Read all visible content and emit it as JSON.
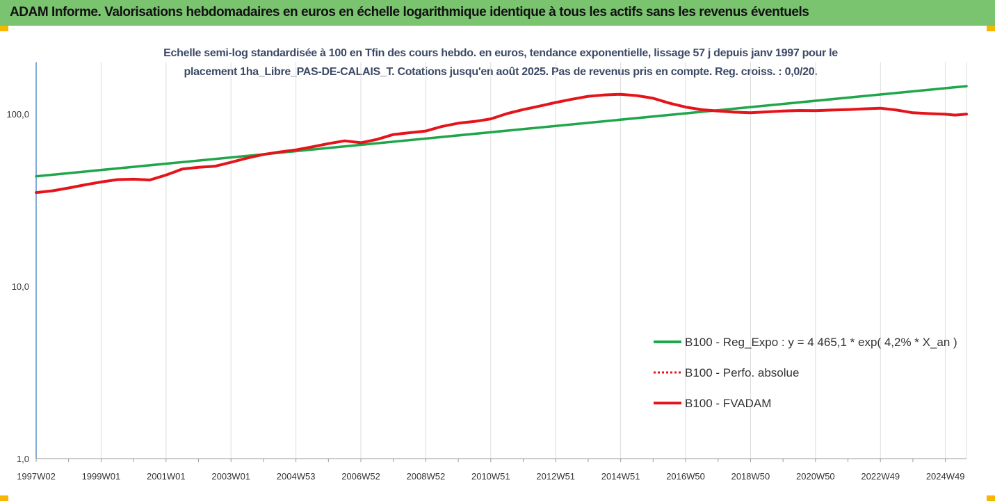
{
  "header": {
    "title": "ADAM Informe. Valorisations hebdomadaires en euros en échelle logarithmique identique à tous les actifs sans les revenus éventuels"
  },
  "colors": {
    "header_bg": "#7ac36f",
    "accent": "#f5b700",
    "trend": "#1fa64a",
    "perf": "#e5141b",
    "fvadam": "#e5141b"
  },
  "chart_data": {
    "type": "line",
    "title_lines": [
      "Echelle semi-log standardisée à 100 en Tfin des cours hebdo. en euros, tendance exponentielle, lissage 57 j depuis janv 1997 pour le",
      "placement 1ha_Libre_PAS-DE-CALAIS_T. Cotations jusqu'en août 2025. Pas de revenus pris en compte. Reg. croiss. : 0,0/20."
    ],
    "y_scale": "log",
    "ylim": [
      1,
      200
    ],
    "xlim": [
      1997.0,
      2025.65
    ],
    "y_ticks": [
      {
        "value": 1,
        "label": "1,0"
      },
      {
        "value": 10,
        "label": "10,0"
      },
      {
        "value": 100,
        "label": "100,0"
      }
    ],
    "x_ticks": [
      {
        "value": 1997.0,
        "label": "1997W02"
      },
      {
        "value": 1999.0,
        "label": "1999W01"
      },
      {
        "value": 2001.0,
        "label": "2001W01"
      },
      {
        "value": 2003.0,
        "label": "2003W01"
      },
      {
        "value": 2005.0,
        "label": "2004W53"
      },
      {
        "value": 2007.0,
        "label": "2006W52"
      },
      {
        "value": 2009.0,
        "label": "2008W52"
      },
      {
        "value": 2011.0,
        "label": "2010W51"
      },
      {
        "value": 2013.0,
        "label": "2012W51"
      },
      {
        "value": 2015.0,
        "label": "2014W51"
      },
      {
        "value": 2017.0,
        "label": "2016W50"
      },
      {
        "value": 2019.0,
        "label": "2018W50"
      },
      {
        "value": 2021.0,
        "label": "2020W50"
      },
      {
        "value": 2023.0,
        "label": "2022W49"
      },
      {
        "value": 2025.0,
        "label": "2024W49"
      }
    ],
    "grid": {
      "vertical": true,
      "horizontal": false
    },
    "legend_position": "right",
    "series": [
      {
        "name": "B100 - Reg_Expo : y = 4 465,1 * exp( 4,2% *  X_an )",
        "color": "#1fa64a",
        "style": "solid",
        "x": [
          1997.0,
          2025.65
        ],
        "y": [
          43.5,
          145
        ]
      },
      {
        "name": "B100 - Perfo. absolue",
        "color": "#e5141b",
        "style": "dotted",
        "x": [],
        "y": []
      },
      {
        "name": "B100 - FVADAM",
        "color": "#e5141b",
        "style": "solid",
        "x": [
          1997.0,
          1997.5,
          1998.0,
          1998.5,
          1999.0,
          1999.5,
          2000.0,
          2000.5,
          2001.0,
          2001.5,
          2002.0,
          2002.5,
          2003.0,
          2003.5,
          2004.0,
          2004.5,
          2005.0,
          2005.5,
          2006.0,
          2006.5,
          2007.0,
          2007.5,
          2008.0,
          2008.5,
          2009.0,
          2009.5,
          2010.0,
          2010.5,
          2011.0,
          2011.5,
          2012.0,
          2012.5,
          2013.0,
          2013.5,
          2014.0,
          2014.5,
          2015.0,
          2015.5,
          2016.0,
          2016.5,
          2017.0,
          2017.5,
          2018.0,
          2018.5,
          2019.0,
          2019.5,
          2020.0,
          2020.5,
          2021.0,
          2021.5,
          2022.0,
          2022.5,
          2023.0,
          2023.5,
          2024.0,
          2024.5,
          2025.0,
          2025.3,
          2025.65
        ],
        "y": [
          35,
          35.8,
          37.2,
          38.8,
          40.3,
          41.6,
          41.8,
          41.4,
          44.2,
          47.9,
          49,
          49.7,
          52.4,
          55.5,
          58.2,
          60.2,
          61.9,
          64.4,
          67.3,
          69.8,
          68.1,
          71.2,
          76,
          77.8,
          79.6,
          84.7,
          88.4,
          90.5,
          93.6,
          100.5,
          106,
          111.1,
          116.6,
          121.8,
          126.6,
          129,
          130,
          127.8,
          123.4,
          115.6,
          109.6,
          105.8,
          104,
          102.4,
          101.6,
          102.8,
          104,
          104.8,
          104.6,
          105.3,
          106,
          107.1,
          108,
          105.3,
          101.6,
          100.5,
          99.6,
          98.5,
          99.8
        ]
      }
    ]
  }
}
